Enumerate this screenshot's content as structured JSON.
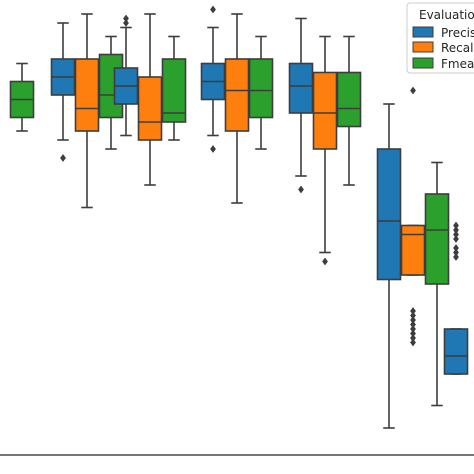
{
  "chart_data": {
    "type": "box",
    "title": "",
    "xlabel": "",
    "ylabel": "",
    "grid": false,
    "legend_placement": "top-right",
    "legend": {
      "title": "Evaluation",
      "entries": [
        "Precision",
        "Recall",
        "Fmeasure"
      ]
    },
    "visible_legend_text": {
      "title": "Evaluatio",
      "entries": [
        "Precis",
        "Recall",
        "Fmeas"
      ]
    },
    "series": [
      {
        "name": "Precision",
        "color": "#1f77b4"
      },
      {
        "name": "Recall",
        "color": "#ff7f0e"
      },
      {
        "name": "Fmeasure",
        "color": "#2ca02c"
      }
    ],
    "value_axis": {
      "direction": "up",
      "range_shown": [
        0.0,
        1.0
      ],
      "note": "values estimated on a 0-1 scale; no tick labels visible"
    },
    "groups": [
      {
        "boxes": [
          {
            "series": "Fmeasure",
            "whisker_low": 0.72,
            "q1": 0.75,
            "median": 0.79,
            "q3": 0.83,
            "whisker_high": 0.87,
            "outliers": []
          }
        ]
      },
      {
        "boxes": [
          {
            "series": "Precision",
            "whisker_low": 0.7,
            "q1": 0.8,
            "median": 0.84,
            "q3": 0.88,
            "whisker_high": 0.96,
            "outliers": [
              0.66
            ]
          },
          {
            "series": "Recall",
            "whisker_low": 0.55,
            "q1": 0.72,
            "median": 0.77,
            "q3": 0.88,
            "whisker_high": 0.98,
            "outliers": []
          },
          {
            "series": "Fmeasure",
            "whisker_low": 0.68,
            "q1": 0.75,
            "median": 0.8,
            "q3": 0.89,
            "whisker_high": 0.93,
            "outliers": []
          }
        ]
      },
      {
        "boxes": [
          {
            "series": "Precision",
            "whisker_low": 0.71,
            "q1": 0.78,
            "median": 0.82,
            "q3": 0.86,
            "whisker_high": 0.95,
            "outliers": [
              0.96,
              0.97
            ]
          },
          {
            "series": "Recall",
            "whisker_low": 0.6,
            "q1": 0.7,
            "median": 0.74,
            "q3": 0.84,
            "whisker_high": 0.98,
            "outliers": []
          },
          {
            "series": "Fmeasure",
            "whisker_low": 0.7,
            "q1": 0.74,
            "median": 0.76,
            "q3": 0.88,
            "whisker_high": 0.93,
            "outliers": []
          }
        ]
      },
      {
        "boxes": [
          {
            "series": "Precision",
            "whisker_low": 0.71,
            "q1": 0.79,
            "median": 0.83,
            "q3": 0.87,
            "whisker_high": 0.95,
            "outliers": [
              0.68,
              0.99
            ]
          },
          {
            "series": "Recall",
            "whisker_low": 0.56,
            "q1": 0.72,
            "median": 0.81,
            "q3": 0.88,
            "whisker_high": 0.98,
            "outliers": []
          },
          {
            "series": "Fmeasure",
            "whisker_low": 0.68,
            "q1": 0.75,
            "median": 0.81,
            "q3": 0.88,
            "whisker_high": 0.93,
            "outliers": []
          }
        ]
      },
      {
        "boxes": [
          {
            "series": "Precision",
            "whisker_low": 0.62,
            "q1": 0.76,
            "median": 0.82,
            "q3": 0.87,
            "whisker_high": 0.97,
            "outliers": [
              0.59
            ]
          },
          {
            "series": "Recall",
            "whisker_low": 0.45,
            "q1": 0.68,
            "median": 0.76,
            "q3": 0.85,
            "whisker_high": 0.93,
            "outliers": [
              0.43
            ]
          },
          {
            "series": "Fmeasure",
            "whisker_low": 0.6,
            "q1": 0.73,
            "median": 0.77,
            "q3": 0.85,
            "whisker_high": 0.93,
            "outliers": []
          }
        ]
      },
      {
        "boxes": [
          {
            "series": "Precision",
            "whisker_low": 0.06,
            "q1": 0.39,
            "median": 0.52,
            "q3": 0.68,
            "whisker_high": 0.78,
            "outliers": []
          },
          {
            "series": "Recall",
            "whisker_low": 0.4,
            "q1": 0.4,
            "median": 0.49,
            "q3": 0.51,
            "whisker_high": 0.51,
            "outliers": [
              0.25,
              0.26,
              0.27,
              0.28,
              0.29,
              0.3,
              0.31,
              0.32,
              0.81
            ]
          },
          {
            "series": "Fmeasure",
            "whisker_low": 0.11,
            "q1": 0.38,
            "median": 0.5,
            "q3": 0.58,
            "whisker_high": 0.65,
            "outliers": []
          }
        ]
      },
      {
        "boxes": [
          {
            "series": "Precision",
            "whisker_low": 0.18,
            "q1": 0.18,
            "median": 0.22,
            "q3": 0.28,
            "whisker_high": 0.28,
            "outliers": [
              0.44,
              0.45,
              0.46,
              0.48,
              0.49,
              0.5,
              0.51
            ]
          }
        ]
      }
    ]
  }
}
